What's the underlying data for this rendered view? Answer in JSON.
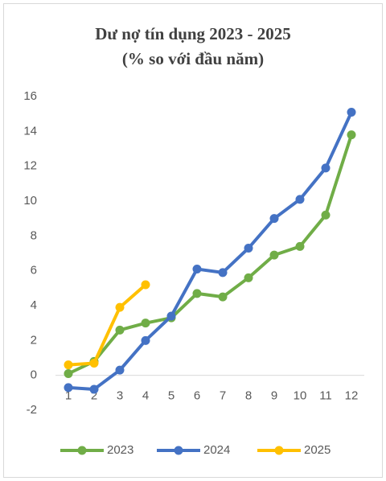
{
  "chart_data": {
    "type": "line",
    "title": "Dư nợ tín dụng 2023 - 2025",
    "subtitle": "(% so với đầu năm)",
    "categories": [
      "1",
      "2",
      "3",
      "4",
      "5",
      "6",
      "7",
      "8",
      "9",
      "10",
      "11",
      "12"
    ],
    "series": [
      {
        "name": "2023",
        "color": "#70ad47",
        "values": [
          0.1,
          0.8,
          2.6,
          3.0,
          3.3,
          4.7,
          4.5,
          5.6,
          6.9,
          7.4,
          9.2,
          13.8
        ]
      },
      {
        "name": "2024",
        "color": "#4472c4",
        "values": [
          -0.7,
          -0.8,
          0.3,
          2.0,
          3.4,
          6.1,
          5.9,
          7.3,
          9.0,
          10.1,
          11.9,
          15.1
        ]
      },
      {
        "name": "2025",
        "color": "#ffc000",
        "values": [
          0.6,
          0.7,
          3.9,
          5.2,
          null,
          null,
          null,
          null,
          null,
          null,
          null,
          null
        ]
      }
    ],
    "ylim": [
      -2,
      16
    ],
    "yticks": [
      -2,
      0,
      2,
      4,
      6,
      8,
      10,
      12,
      14,
      16
    ],
    "legend": "bottom",
    "grid": false
  }
}
